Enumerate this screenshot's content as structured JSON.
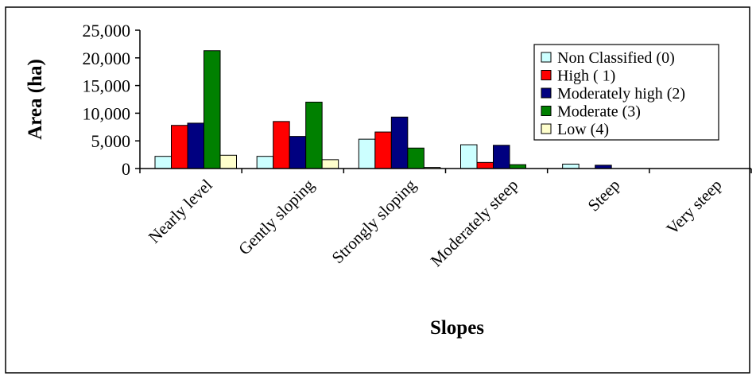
{
  "chart_data": {
    "type": "bar",
    "title": "",
    "xlabel": "Slopes",
    "ylabel": "Area (ha)",
    "ylim": [
      0,
      25000
    ],
    "yticks": [
      0,
      5000,
      10000,
      15000,
      20000,
      25000
    ],
    "ytick_labels": [
      "0",
      "5,000",
      "10,000",
      "15,000",
      "20,000",
      "25,000"
    ],
    "grid": false,
    "legend_position": "top-right",
    "categories": [
      "Nearly level",
      "Gently sloping",
      "Strongly sloping",
      "Moderately steep",
      "Steep",
      "Very steep"
    ],
    "series": [
      {
        "name": "Non Classified (0)",
        "color": "#ccffff",
        "values": [
          2200,
          2200,
          5300,
          4300,
          800,
          0
        ]
      },
      {
        "name": "High ( 1)",
        "color": "#ff0000",
        "values": [
          7800,
          8500,
          6600,
          1100,
          0,
          0
        ]
      },
      {
        "name": "Moderately high (2)",
        "color": "#000080",
        "values": [
          8200,
          5800,
          9300,
          4200,
          600,
          0
        ]
      },
      {
        "name": "Moderate (3)",
        "color": "#008000",
        "values": [
          21300,
          12000,
          3700,
          700,
          0,
          0
        ]
      },
      {
        "name": "Low (4)",
        "color": "#ffffcc",
        "values": [
          2400,
          1600,
          200,
          0,
          0,
          0
        ]
      }
    ]
  }
}
